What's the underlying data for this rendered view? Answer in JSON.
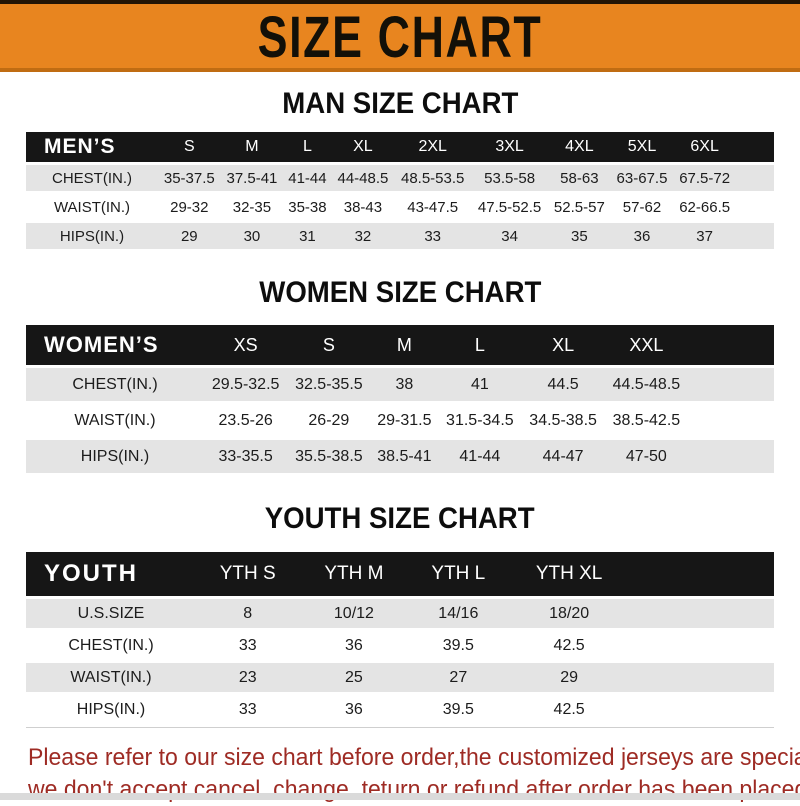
{
  "banner": {
    "title": "SIZE CHART",
    "bg_color": "#E8851F",
    "text_color": "#131008"
  },
  "sections": [
    {
      "heading": "MAN SIZE CHART",
      "table": {
        "header_label": "MEN’S",
        "columns": [
          "S",
          "M",
          "L",
          "XL",
          "2XL",
          "3XL",
          "4XL",
          "5XL",
          "6XL"
        ],
        "rows": [
          {
            "label": "CHEST(IN.)",
            "values": [
              "35-37.5",
              "37.5-41",
              "41-44",
              "44-48.5",
              "48.5-53.5",
              "53.5-58",
              "58-63",
              "63-67.5",
              "67.5-72"
            ]
          },
          {
            "label": "WAIST(IN.)",
            "values": [
              "29-32",
              "32-35",
              "35-38",
              "38-43",
              "43-47.5",
              "47.5-52.5",
              "52.5-57",
              "57-62",
              "62-66.5"
            ]
          },
          {
            "label": "HIPS(IN.)",
            "values": [
              "29",
              "30",
              "31",
              "32",
              "33",
              "34",
              "35",
              "36",
              "37"
            ]
          }
        ]
      }
    },
    {
      "heading": "WOMEN SIZE CHART",
      "table": {
        "header_label": "WOMEN’S",
        "columns": [
          "XS",
          "S",
          "M",
          "L",
          "XL",
          "XXL"
        ],
        "rows": [
          {
            "label": "CHEST(IN.)",
            "values": [
              "29.5-32.5",
              "32.5-35.5",
              "38",
              "41",
              "44.5",
              "44.5-48.5"
            ]
          },
          {
            "label": "WAIST(IN.)",
            "values": [
              "23.5-26",
              "26-29",
              "29-31.5",
              "31.5-34.5",
              "34.5-38.5",
              "38.5-42.5"
            ]
          },
          {
            "label": "HIPS(IN.)",
            "values": [
              "33-35.5",
              "35.5-38.5",
              "38.5-41",
              "41-44",
              "44-47",
              "47-50"
            ]
          }
        ]
      }
    },
    {
      "heading": "YOUTH SIZE CHART",
      "table": {
        "header_label": "YOUTH",
        "columns": [
          "YTH S",
          "YTH M",
          "YTH L",
          "YTH XL"
        ],
        "rows": [
          {
            "label": "U.S.SIZE",
            "values": [
              "8",
              "10/12",
              "14/16",
              "18/20"
            ]
          },
          {
            "label": "CHEST(IN.)",
            "values": [
              "33",
              "36",
              "39.5",
              "42.5"
            ]
          },
          {
            "label": "WAIST(IN.)",
            "values": [
              "23",
              "25",
              "27",
              "29"
            ]
          },
          {
            "label": "HIPS(IN.)",
            "values": [
              "33",
              "36",
              "39.5",
              "42.5"
            ]
          }
        ]
      }
    }
  ],
  "footer": {
    "line1": "Please refer to our size chart before order,the customized jerseys are special products,",
    "line2": "we don't accept cancel, change, teturn or refund after order has been placed!",
    "text_color": "#9E2B24"
  },
  "colors": {
    "header_bar": "#161616",
    "row_gray": "#e4e4e4",
    "row_white": "#ffffff"
  }
}
